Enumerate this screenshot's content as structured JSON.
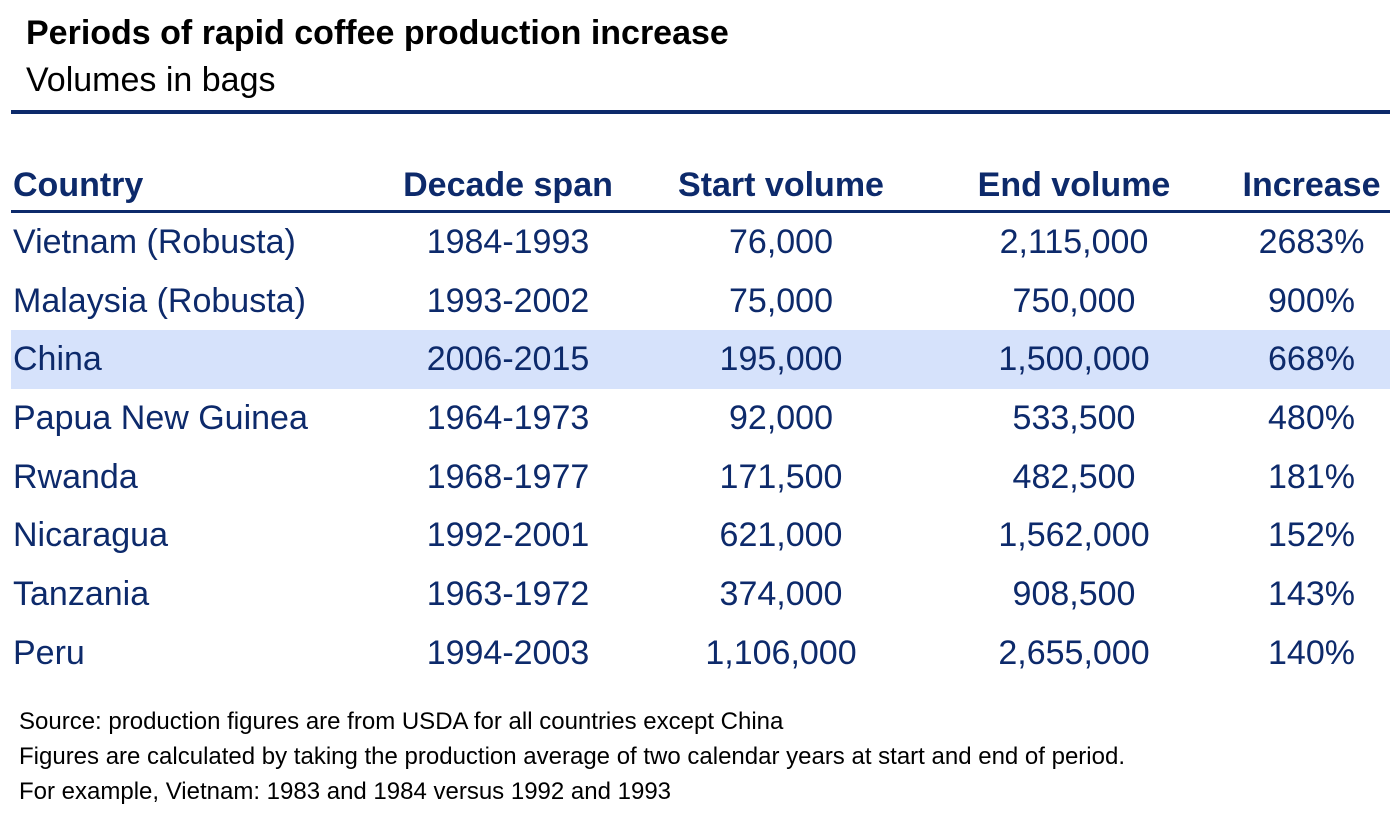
{
  "colors": {
    "text_dark": "#000000",
    "accent_navy": "#0d2a6b",
    "highlight_row": "#d6e2fb"
  },
  "chart_data": {
    "type": "table",
    "title": "Periods of rapid coffee production increase",
    "subtitle": "Volumes in bags",
    "columns": [
      "Country",
      "Decade span",
      "Start volume",
      "End volume",
      "Increase"
    ],
    "rows": [
      [
        "Vietnam (Robusta)",
        "1984-1993",
        "76,000",
        "2,115,000",
        "2683%"
      ],
      [
        "Malaysia (Robusta)",
        "1993-2002",
        "75,000",
        "750,000",
        "900%"
      ],
      [
        "China",
        "2006-2015",
        "195,000",
        "1,500,000",
        "668%"
      ],
      [
        "Papua New Guinea",
        "1964-1973",
        "92,000",
        "533,500",
        "480%"
      ],
      [
        "Rwanda",
        "1968-1977",
        "171,500",
        "482,500",
        "181%"
      ],
      [
        "Nicaragua",
        "1992-2001",
        "621,000",
        "1,562,000",
        "152%"
      ],
      [
        "Tanzania",
        "1963-1972",
        "374,000",
        "908,500",
        "143%"
      ],
      [
        "Peru",
        "1994-2003",
        "1,106,000",
        "2,655,000",
        "140%"
      ]
    ],
    "highlighted_row": "China",
    "footnotes": [
      "Source: production figures are from USDA for all countries except China",
      "Figures are calculated by taking the production average of two calendar years at start and end of period.",
      "For example, Vietnam: 1983 and 1984 versus 1992 and 1993"
    ]
  }
}
